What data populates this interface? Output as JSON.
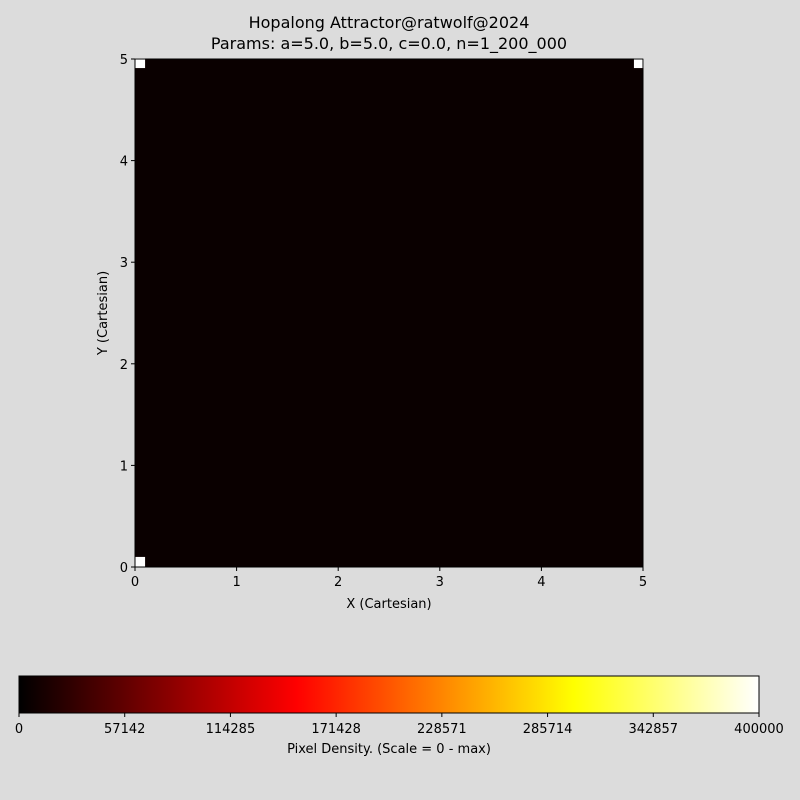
{
  "chart_data": {
    "type": "heatmap",
    "title": "Hopalong Attractor@ratwolf@2024",
    "subtitle": "Params: a=5.0, b=5.0, c=0.0, n=1_200_000",
    "xlabel": "X (Cartesian)",
    "ylabel": "Y (Cartesian)",
    "xlim": [
      0,
      5
    ],
    "ylim": [
      0,
      5
    ],
    "xticks": [
      "0",
      "1",
      "2",
      "3",
      "4",
      "5"
    ],
    "yticks": [
      "0",
      "1",
      "2",
      "3",
      "4",
      "5"
    ],
    "background_color": "#0a0000",
    "points": [
      {
        "x": 0.05,
        "y": 0.05
      },
      {
        "x": 0.05,
        "y": 4.96
      },
      {
        "x": 4.96,
        "y": 4.96
      }
    ],
    "point_color": "#ffffff",
    "grid": false,
    "colorbar": {
      "label": "Pixel Density. (Scale = 0 - max)",
      "min": 0,
      "max": 400000,
      "ticks": [
        "0",
        "57142",
        "114285",
        "171428",
        "228571",
        "285714",
        "342857",
        "400000"
      ],
      "colormap": "hot",
      "colors": [
        "#000000",
        "#ff0000",
        "#ffff00",
        "#ffffff"
      ],
      "placement": "bottom"
    }
  }
}
